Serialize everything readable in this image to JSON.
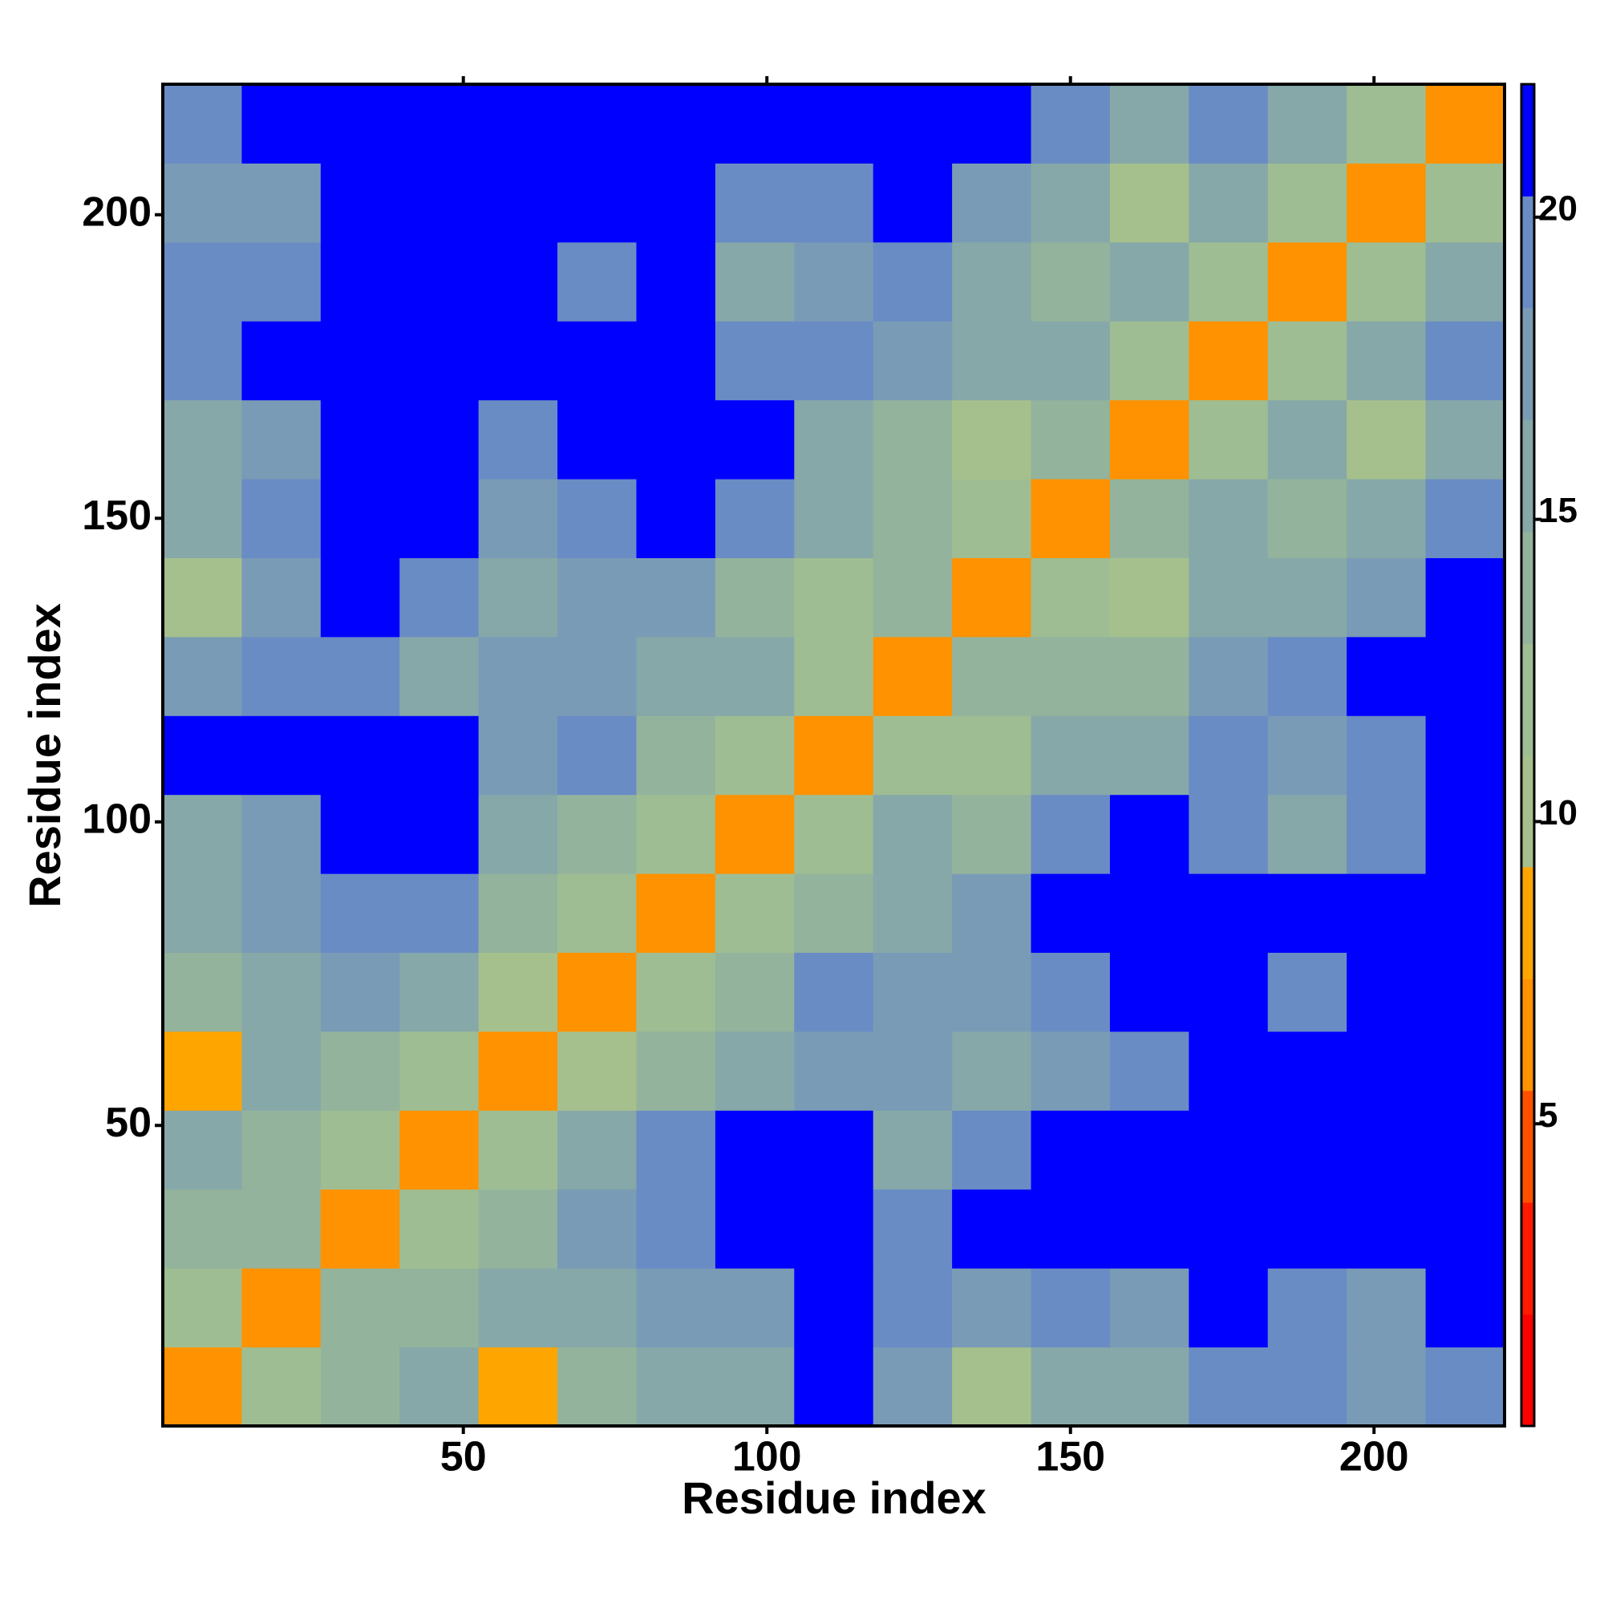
{
  "chart_data": {
    "type": "heatmap",
    "x_label": "Residue index",
    "y_label": "Residue index",
    "bins": [
      0.5,
      13.5,
      26.5,
      39.5,
      52.5,
      65.5,
      78.5,
      91.5,
      104.5,
      117.5,
      130.5,
      143.5,
      156.5,
      169.5,
      182.5,
      195.5,
      208.5,
      221.5
    ],
    "xlim": [
      0.5,
      221.5
    ],
    "ylim": [
      0.5,
      221.5
    ],
    "xticks": [
      50,
      100,
      150,
      200
    ],
    "yticks": [
      50,
      100,
      150,
      200
    ],
    "zlim": [
      0,
      22.2
    ],
    "zticks": [
      5,
      10,
      15,
      20
    ],
    "colors": [
      "#ff0000",
      "#ff1a00",
      "#ff5000",
      "#ff9200",
      "#ffa500",
      "#a6c08d",
      "#9fbd93",
      "#93b39c",
      "#86a8a8",
      "#7a9bb6",
      "#6a8cc4",
      "#0000ff"
    ],
    "z": [
      [
        6,
        12,
        13,
        15,
        9,
        14,
        15,
        16,
        21,
        17,
        10,
        16,
        15,
        19,
        20,
        17,
        20
      ],
      [
        12,
        6,
        13,
        14,
        15,
        15,
        17,
        18,
        21,
        19,
        18,
        19,
        17,
        21,
        20,
        18,
        21
      ],
      [
        13,
        13,
        6,
        12,
        14,
        17,
        19,
        22,
        22,
        20,
        21,
        22,
        22,
        22,
        22,
        22,
        22
      ],
      [
        15,
        14,
        12,
        6,
        12,
        16,
        20,
        22,
        21,
        16,
        19,
        22,
        22,
        22,
        22,
        22,
        22
      ],
      [
        9,
        15,
        14,
        12,
        6,
        11,
        13,
        16,
        18,
        17,
        16,
        17,
        19,
        22,
        22,
        22,
        22
      ],
      [
        14,
        15,
        17,
        16,
        11,
        6,
        12,
        14,
        19,
        18,
        17,
        19,
        21,
        21,
        20,
        21,
        22
      ],
      [
        15,
        17,
        19,
        20,
        13,
        12,
        6,
        12,
        14,
        16,
        18,
        22,
        22,
        22,
        22,
        22,
        22
      ],
      [
        16,
        18,
        22,
        22,
        16,
        14,
        12,
        6,
        12,
        15,
        14,
        19,
        22,
        19,
        16,
        20,
        22
      ],
      [
        21,
        21,
        22,
        21,
        18,
        19,
        14,
        12,
        6,
        12,
        12,
        15,
        15,
        20,
        18,
        20,
        22
      ],
      [
        17,
        19,
        20,
        16,
        17,
        18,
        16,
        15,
        12,
        6,
        13,
        14,
        13,
        18,
        20,
        21,
        22
      ],
      [
        10,
        18,
        21,
        19,
        16,
        17,
        18,
        14,
        12,
        13,
        6,
        12,
        11,
        16,
        15,
        17,
        21
      ],
      [
        16,
        19,
        22,
        22,
        17,
        19,
        22,
        19,
        15,
        14,
        12,
        6,
        13,
        15,
        13,
        15,
        20
      ],
      [
        15,
        17,
        22,
        22,
        19,
        21,
        22,
        22,
        15,
        13,
        11,
        13,
        6,
        12,
        15,
        11,
        16
      ],
      [
        19,
        21,
        22,
        22,
        22,
        21,
        22,
        19,
        20,
        18,
        16,
        15,
        12,
        6,
        12,
        16,
        19
      ],
      [
        20,
        20,
        22,
        22,
        22,
        20,
        22,
        16,
        18,
        20,
        15,
        13,
        15,
        12,
        6,
        12,
        15
      ],
      [
        17,
        18,
        22,
        22,
        22,
        21,
        22,
        20,
        20,
        21,
        17,
        15,
        11,
        16,
        12,
        6,
        12
      ],
      [
        20,
        21,
        22,
        22,
        22,
        22,
        22,
        22,
        22,
        22,
        21,
        20,
        16,
        19,
        15,
        12,
        6
      ]
    ]
  }
}
